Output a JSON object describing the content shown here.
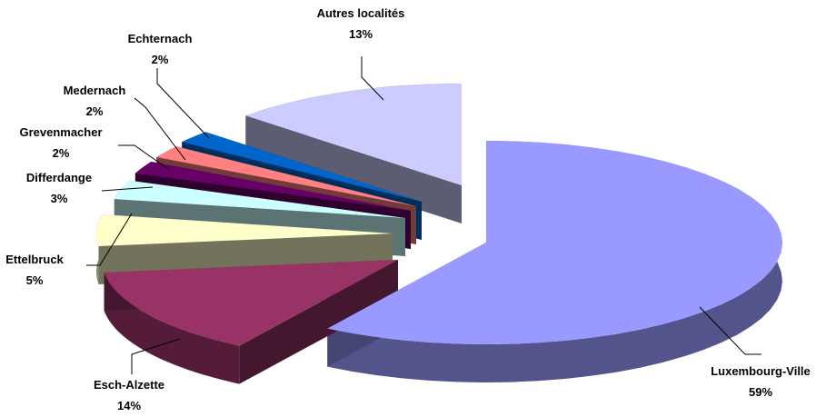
{
  "chart_data": {
    "type": "pie",
    "title": "",
    "slices": [
      {
        "label": "Luxembourg-Ville",
        "value": 59,
        "value_label": "59%",
        "color": "#9999FF"
      },
      {
        "label": "Esch-Alzette",
        "value": 14,
        "value_label": "14%",
        "color": "#993366"
      },
      {
        "label": "Ettelbruck",
        "value": 5,
        "value_label": "5%",
        "color": "#FFFFCC"
      },
      {
        "label": "Differdange",
        "value": 3,
        "value_label": "3%",
        "color": "#CCFFFF"
      },
      {
        "label": "Grevenmacher",
        "value": 2,
        "value_label": "2%",
        "color": "#660066"
      },
      {
        "label": "Medernach",
        "value": 2,
        "value_label": "2%",
        "color": "#FF8080"
      },
      {
        "label": "Echternach",
        "value": 2,
        "value_label": "2%",
        "color": "#0066CC"
      },
      {
        "label": "Autres localités",
        "value": 13,
        "value_label": "13%",
        "color": "#CCCCFF"
      }
    ],
    "style": "3d-exploded",
    "legend": "none"
  }
}
